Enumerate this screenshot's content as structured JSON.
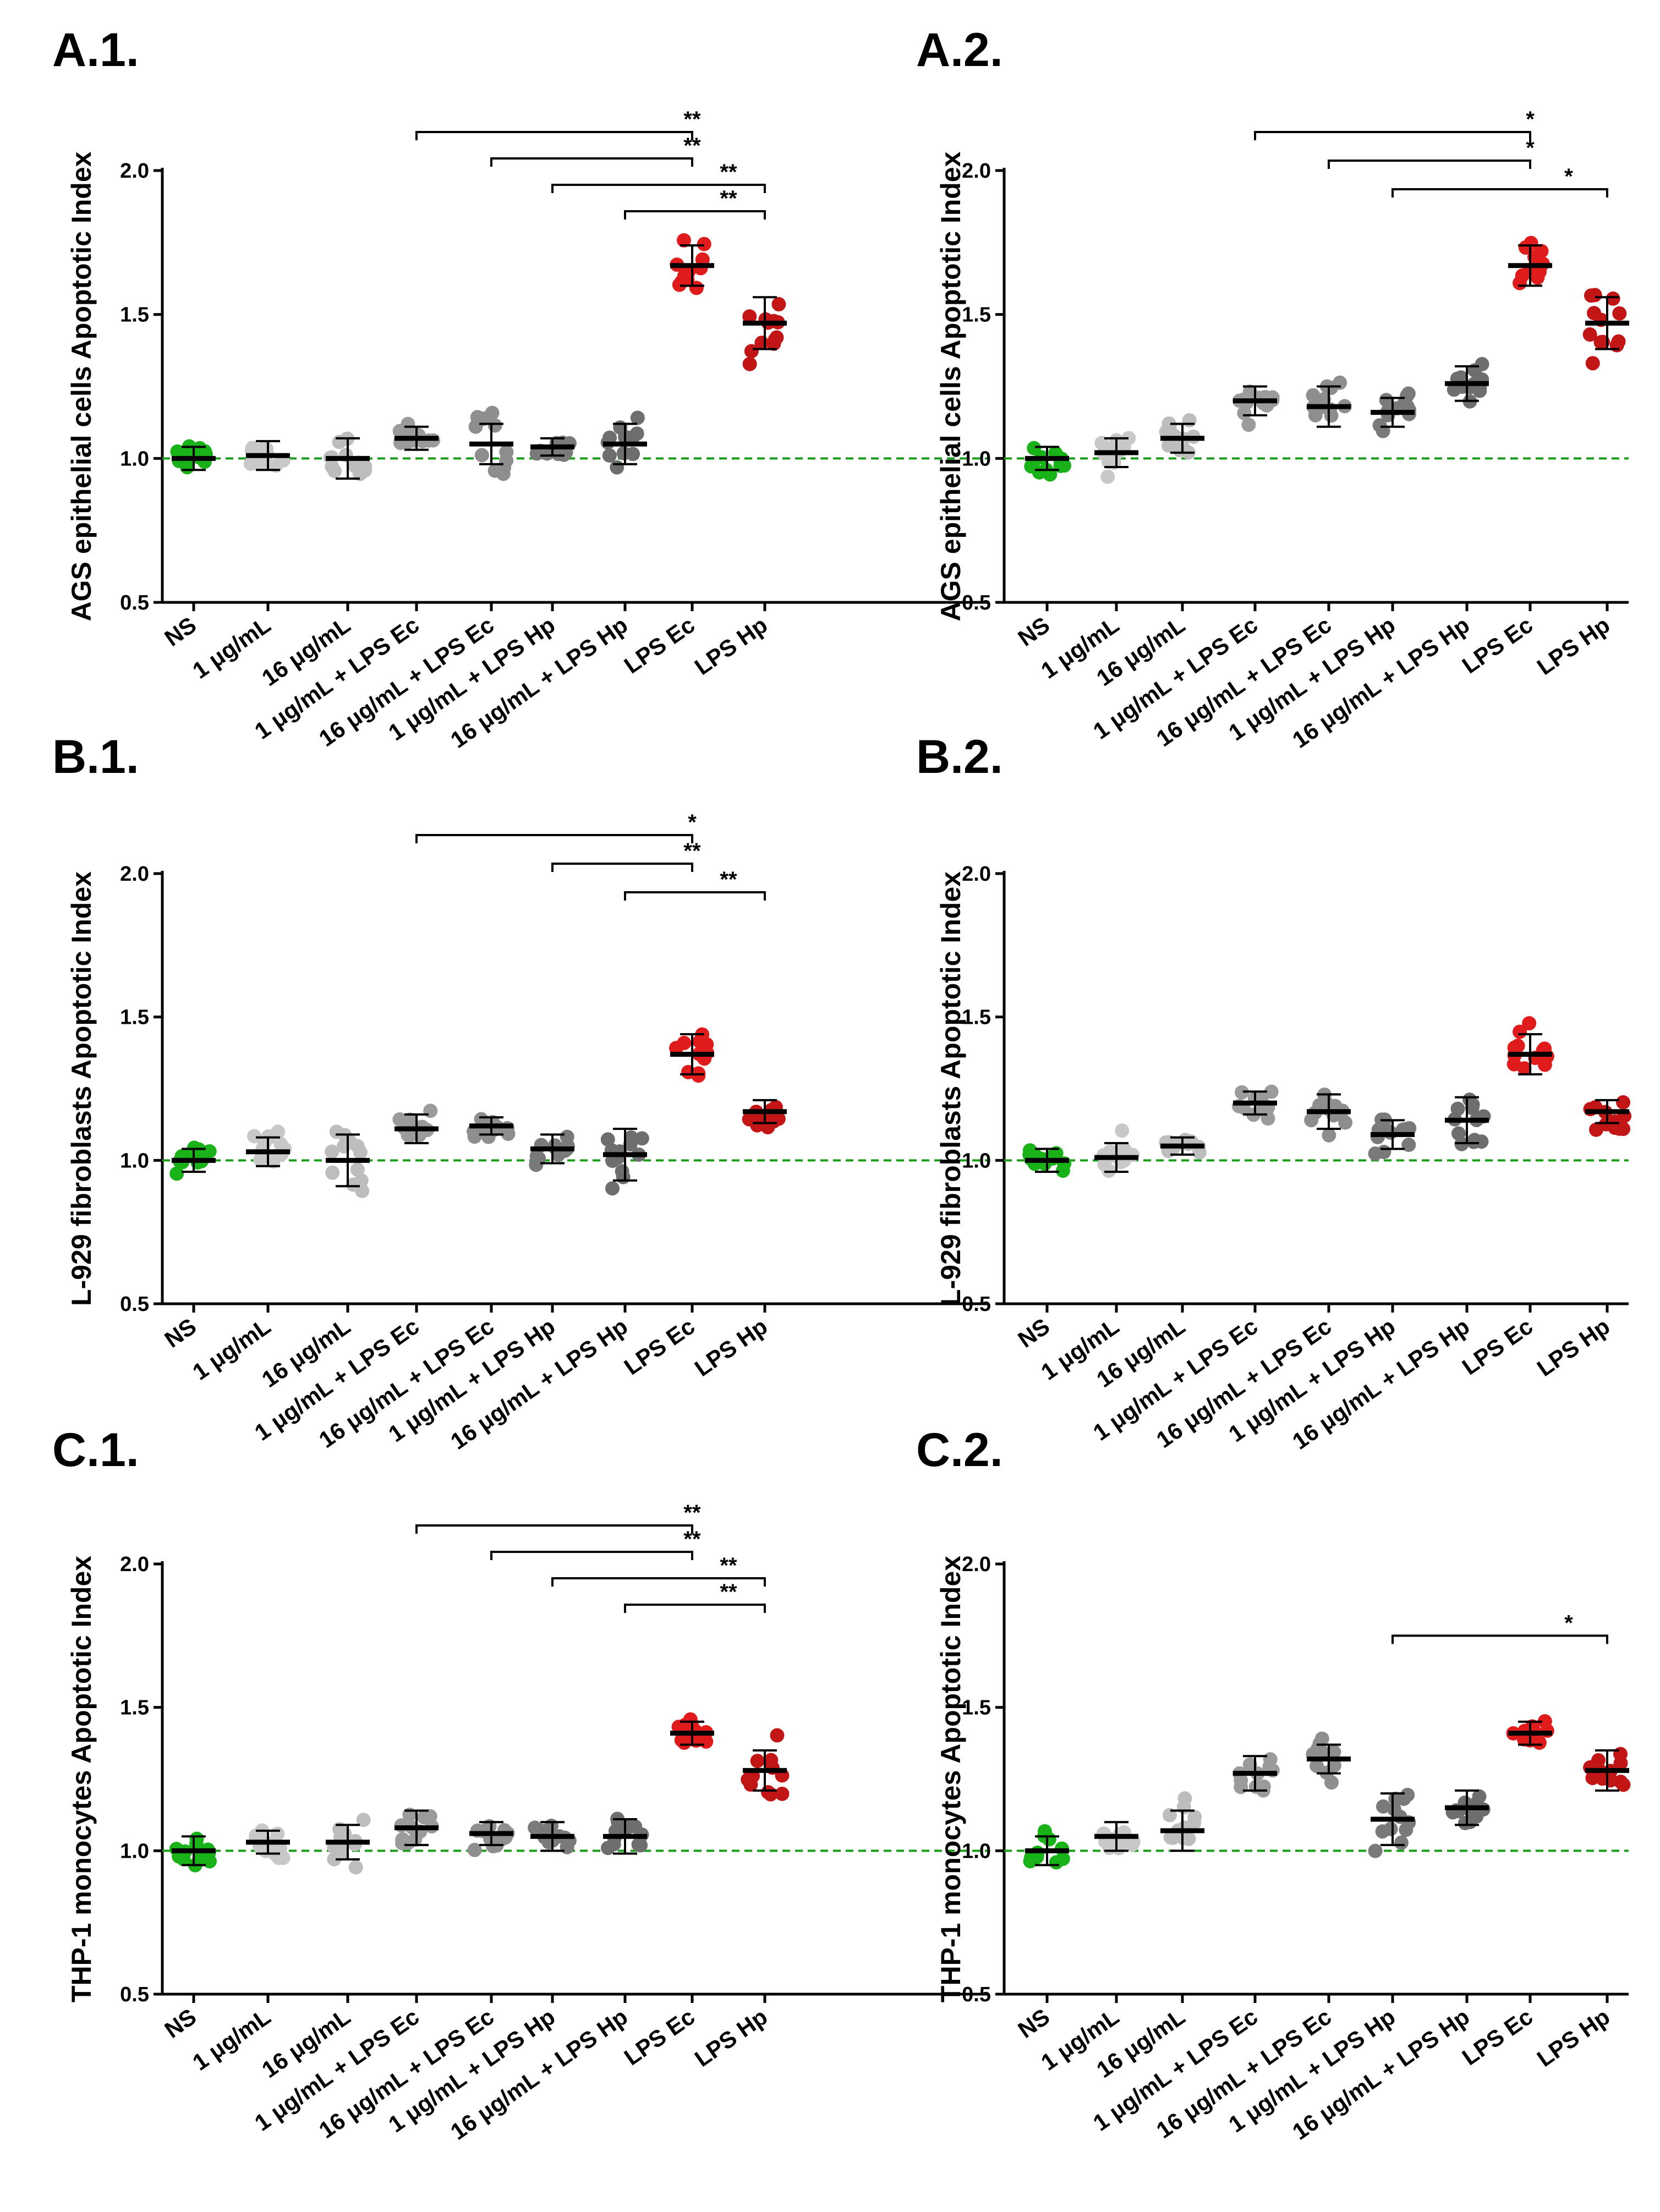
{
  "figure": {
    "colors": {
      "NS": "#19b219",
      "c1": "#c8c8c8",
      "c16": "#bdbdbd",
      "mix1Ec": "#9b9b9b",
      "mix16Ec": "#8e8e8e",
      "mix1Hp": "#7a7a7a",
      "mix16Hp": "#6e6e6e",
      "LPSEc": "#e01b1b",
      "LPSHp": "#c21616",
      "reference_line": "#1a9e1a"
    }
  },
  "chart_data": [
    {
      "panel": "A.1.",
      "type": "scatter",
      "ylabel": "AGS epithelial cells Apoptotic Index",
      "ylim": [
        0.5,
        2.0
      ],
      "yticks": [
        "0.5",
        "1.0",
        "1.5",
        "2.0"
      ],
      "reference_y": 1.0,
      "categories": [
        "NS",
        "1 μg/mL",
        "16 μg/mL",
        "1 μg/mL + LPS Ec",
        "16 μg/mL + LPS Ec",
        "1 μg/mL + LPS Hp",
        "16 μg/mL + LPS Hp",
        "LPS Ec",
        "LPS Hp"
      ],
      "means": [
        1.0,
        1.01,
        1.0,
        1.07,
        1.05,
        1.04,
        1.05,
        1.67,
        1.47
      ],
      "sd": [
        0.04,
        0.05,
        0.07,
        0.04,
        0.07,
        0.03,
        0.07,
        0.07,
        0.09
      ],
      "brackets": [
        {
          "from": 3,
          "to": 7,
          "label": "**"
        },
        {
          "from": 4,
          "to": 7,
          "label": "**"
        },
        {
          "from": 5,
          "to": 8,
          "label": "**"
        },
        {
          "from": 6,
          "to": 8,
          "label": "**"
        }
      ]
    },
    {
      "panel": "A.2.",
      "type": "scatter",
      "ylabel": "AGS epithelial cells Apoptotic Index",
      "ylim": [
        0.5,
        2.0
      ],
      "yticks": [
        "0.5",
        "1.0",
        "1.5",
        "2.0"
      ],
      "reference_y": 1.0,
      "categories": [
        "NS",
        "1 μg/mL",
        "16 μg/mL",
        "1 μg/mL + LPS Ec",
        "16 μg/mL + LPS Ec",
        "1 μg/mL + LPS Hp",
        "16 μg/mL + LPS Hp",
        "LPS Ec",
        "LPS Hp"
      ],
      "means": [
        1.0,
        1.02,
        1.07,
        1.2,
        1.18,
        1.16,
        1.26,
        1.67,
        1.47
      ],
      "sd": [
        0.04,
        0.05,
        0.05,
        0.05,
        0.07,
        0.05,
        0.06,
        0.07,
        0.09
      ],
      "brackets": [
        {
          "from": 3,
          "to": 7,
          "label": "*"
        },
        {
          "from": 4,
          "to": 7,
          "label": "*"
        },
        {
          "from": 5,
          "to": 8,
          "label": "*"
        }
      ]
    },
    {
      "panel": "B.1.",
      "type": "scatter",
      "ylabel": "L-929 fibroblasts Apoptotic Index",
      "ylim": [
        0.5,
        2.0
      ],
      "yticks": [
        "0.5",
        "1.0",
        "1.5",
        "2.0"
      ],
      "reference_y": 1.0,
      "categories": [
        "NS",
        "1 μg/mL",
        "16 μg/mL",
        "1 μg/mL + LPS Ec",
        "16 μg/mL + LPS Ec",
        "1 μg/mL + LPS Hp",
        "16 μg/mL + LPS Hp",
        "LPS Ec",
        "LPS Hp"
      ],
      "means": [
        1.0,
        1.03,
        1.0,
        1.11,
        1.12,
        1.04,
        1.02,
        1.37,
        1.17
      ],
      "sd": [
        0.04,
        0.05,
        0.09,
        0.05,
        0.03,
        0.05,
        0.09,
        0.07,
        0.04
      ],
      "brackets": [
        {
          "from": 3,
          "to": 7,
          "label": "*"
        },
        {
          "from": 5,
          "to": 7,
          "label": "**"
        },
        {
          "from": 6,
          "to": 8,
          "label": "**"
        }
      ]
    },
    {
      "panel": "B.2.",
      "type": "scatter",
      "ylabel": "L-929 fibroblasts Apoptotic Index",
      "ylim": [
        0.5,
        2.0
      ],
      "yticks": [
        "0.5",
        "1.0",
        "1.5",
        "2.0"
      ],
      "reference_y": 1.0,
      "categories": [
        "NS",
        "1 μg/mL",
        "16 μg/mL",
        "1 μg/mL + LPS Ec",
        "16 μg/mL + LPS Ec",
        "1 μg/mL + LPS Hp",
        "16 μg/mL + LPS Hp",
        "LPS Ec",
        "LPS Hp"
      ],
      "means": [
        1.0,
        1.01,
        1.05,
        1.2,
        1.17,
        1.09,
        1.14,
        1.37,
        1.17
      ],
      "sd": [
        0.04,
        0.05,
        0.03,
        0.04,
        0.06,
        0.05,
        0.08,
        0.07,
        0.04
      ],
      "brackets": []
    },
    {
      "panel": "C.1.",
      "type": "scatter",
      "ylabel": "THP-1 monocytes Apoptotic Index",
      "ylim": [
        0.5,
        2.0
      ],
      "yticks": [
        "0.5",
        "1.0",
        "1.5",
        "2.0"
      ],
      "reference_y": 1.0,
      "categories": [
        "NS",
        "1 μg/mL",
        "16 μg/mL",
        "1 μg/mL + LPS Ec",
        "16 μg/mL + LPS Ec",
        "1 μg/mL + LPS Hp",
        "16 μg/mL + LPS Hp",
        "LPS Ec",
        "LPS Hp"
      ],
      "means": [
        1.0,
        1.03,
        1.03,
        1.08,
        1.06,
        1.05,
        1.05,
        1.41,
        1.28
      ],
      "sd": [
        0.05,
        0.04,
        0.06,
        0.06,
        0.04,
        0.05,
        0.06,
        0.04,
        0.07
      ],
      "brackets": [
        {
          "from": 3,
          "to": 7,
          "label": "**"
        },
        {
          "from": 4,
          "to": 7,
          "label": "**"
        },
        {
          "from": 5,
          "to": 8,
          "label": "**"
        },
        {
          "from": 6,
          "to": 8,
          "label": "**"
        }
      ]
    },
    {
      "panel": "C.2.",
      "type": "scatter",
      "ylabel": "THP-1 monocytes Apoptotic Index",
      "ylim": [
        0.5,
        2.0
      ],
      "yticks": [
        "0.5",
        "1.0",
        "1.5",
        "2.0"
      ],
      "reference_y": 1.0,
      "categories": [
        "NS",
        "1 μg/mL",
        "16 μg/mL",
        "1 μg/mL + LPS Ec",
        "16 μg/mL + LPS Ec",
        "1 μg/mL + LPS Hp",
        "16 μg/mL + LPS Hp",
        "LPS Ec",
        "LPS Hp"
      ],
      "means": [
        1.0,
        1.05,
        1.07,
        1.27,
        1.32,
        1.11,
        1.15,
        1.41,
        1.28
      ],
      "sd": [
        0.05,
        0.05,
        0.07,
        0.06,
        0.05,
        0.09,
        0.06,
        0.04,
        0.07
      ],
      "brackets": [
        {
          "from": 5,
          "to": 8,
          "label": "*"
        }
      ]
    }
  ]
}
